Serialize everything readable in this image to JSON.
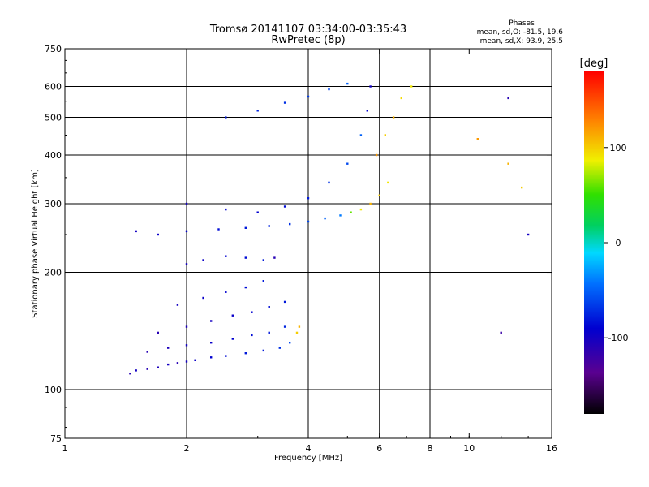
{
  "header": {
    "title": "Tromsø 20141107 03:34:00-03:35:43",
    "subtitle": "RwPretec (8p)"
  },
  "stats": {
    "heading": "Phases",
    "line1": "mean, sd,O: -81.5, 19.6",
    "line2": "mean, sd,X:  93.9, 25.5"
  },
  "colorbar": {
    "label": "[deg]",
    "ticks": [
      "100",
      "0",
      "-100"
    ],
    "tick_values": [
      100,
      0,
      -100
    ],
    "range": [
      -180,
      180
    ]
  },
  "chart_data": {
    "type": "scatter",
    "xlabel": "Frequency [MHz]",
    "ylabel": "Stationary phase Virtual Height [km]",
    "xscale": "log2",
    "yscale": "log",
    "xlim": [
      1,
      16
    ],
    "ylim": [
      75,
      750
    ],
    "xticks": [
      1,
      2,
      4,
      6,
      8,
      10,
      16
    ],
    "xtick_labels": [
      "1",
      "2",
      "4",
      "6",
      "8",
      "10",
      "16"
    ],
    "yticks": [
      75,
      100,
      200,
      300,
      400,
      500,
      600,
      750
    ],
    "ytick_labels": [
      "75",
      "100",
      "200",
      "300",
      "400",
      "500",
      "600",
      "750"
    ],
    "grid_x": [
      2,
      4,
      6,
      8
    ],
    "grid_y": [
      100,
      200,
      300,
      400,
      500,
      600
    ],
    "series": [
      {
        "points": [
          [
            1.45,
            110,
            -110
          ],
          [
            1.5,
            112,
            -100
          ],
          [
            1.6,
            113,
            -110
          ],
          [
            1.7,
            114,
            -105
          ],
          [
            1.8,
            116,
            -100
          ],
          [
            1.9,
            117,
            -110
          ],
          [
            2.0,
            118,
            -100
          ],
          [
            2.1,
            119,
            -95
          ],
          [
            2.3,
            121,
            -90
          ],
          [
            2.5,
            122,
            -85
          ],
          [
            2.8,
            124,
            -80
          ],
          [
            3.1,
            126,
            -80
          ],
          [
            3.4,
            128,
            -70
          ],
          [
            3.6,
            132,
            -60
          ],
          [
            3.75,
            140,
            100
          ],
          [
            3.8,
            145,
            110
          ],
          [
            1.6,
            125,
            -110
          ],
          [
            1.8,
            128,
            -105
          ],
          [
            2.0,
            130,
            -100
          ],
          [
            2.3,
            132,
            -95
          ],
          [
            2.6,
            135,
            -90
          ],
          [
            2.9,
            138,
            -85
          ],
          [
            3.2,
            140,
            -80
          ],
          [
            3.5,
            145,
            -75
          ],
          [
            1.7,
            140,
            -110
          ],
          [
            2.0,
            145,
            -105
          ],
          [
            2.3,
            150,
            -100
          ],
          [
            2.6,
            155,
            -95
          ],
          [
            2.9,
            158,
            -90
          ],
          [
            3.2,
            163,
            -85
          ],
          [
            3.5,
            168,
            -80
          ],
          [
            1.9,
            165,
            -100
          ],
          [
            2.2,
            172,
            -95
          ],
          [
            2.5,
            178,
            -90
          ],
          [
            2.8,
            183,
            -85
          ],
          [
            3.1,
            190,
            -80
          ],
          [
            2.0,
            210,
            -100
          ],
          [
            2.2,
            215,
            -95
          ],
          [
            2.5,
            220,
            -90
          ],
          [
            2.8,
            218,
            -85
          ],
          [
            3.1,
            215,
            -80
          ],
          [
            3.3,
            218,
            -110
          ],
          [
            1.5,
            255,
            -100
          ],
          [
            1.7,
            250,
            -95
          ],
          [
            2.0,
            255,
            -90
          ],
          [
            2.4,
            258,
            -85
          ],
          [
            2.8,
            260,
            -80
          ],
          [
            3.2,
            263,
            -75
          ],
          [
            3.6,
            266,
            -70
          ],
          [
            4.0,
            270,
            -60
          ],
          [
            4.4,
            275,
            -50
          ],
          [
            4.8,
            280,
            -40
          ],
          [
            5.1,
            285,
            60
          ],
          [
            5.4,
            290,
            90
          ],
          [
            5.7,
            300,
            110
          ],
          [
            6.0,
            315,
            100
          ],
          [
            6.3,
            340,
            90
          ],
          [
            2.0,
            300,
            -100
          ],
          [
            2.5,
            290,
            -90
          ],
          [
            3.0,
            285,
            -90
          ],
          [
            3.5,
            295,
            -85
          ],
          [
            4.0,
            310,
            -80
          ],
          [
            4.5,
            340,
            -70
          ],
          [
            5.0,
            380,
            -60
          ],
          [
            5.4,
            450,
            -50
          ],
          [
            5.6,
            520,
            -90
          ],
          [
            5.7,
            600,
            -100
          ],
          [
            2.5,
            500,
            -80
          ],
          [
            3.0,
            520,
            -75
          ],
          [
            3.5,
            545,
            -70
          ],
          [
            4.0,
            565,
            -65
          ],
          [
            4.5,
            590,
            -60
          ],
          [
            5.0,
            610,
            -50
          ],
          [
            5.9,
            400,
            120
          ],
          [
            6.2,
            450,
            100
          ],
          [
            6.5,
            500,
            110
          ],
          [
            6.8,
            560,
            95
          ],
          [
            7.2,
            600,
            90
          ],
          [
            10.5,
            440,
            120
          ],
          [
            12.5,
            380,
            110
          ],
          [
            13.5,
            330,
            100
          ],
          [
            12.5,
            560,
            -110
          ],
          [
            14.0,
            250,
            -100
          ],
          [
            12.0,
            140,
            -120
          ]
        ]
      }
    ]
  }
}
